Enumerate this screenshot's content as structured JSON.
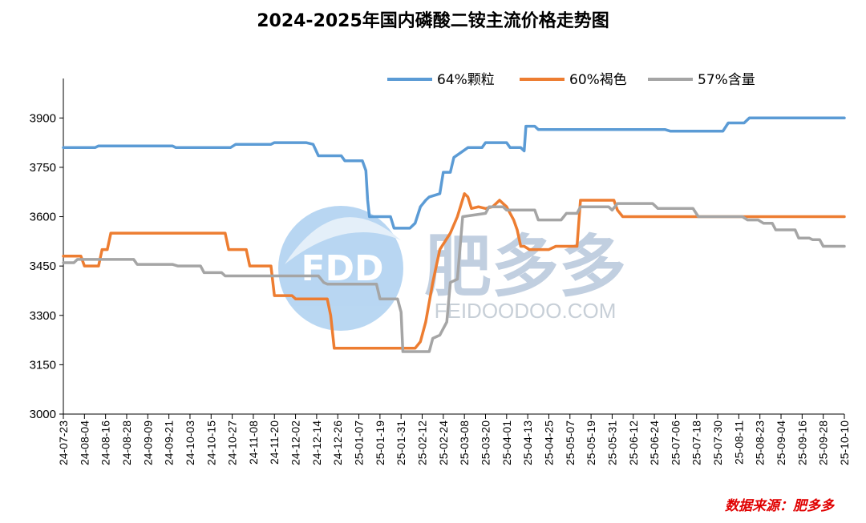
{
  "chart_data": {
    "type": "line",
    "title": "2024-2025年国内磷酸二铵主流价格走势图",
    "source": "数据来源：肥多多",
    "watermark": {
      "logo_text": "FDD",
      "brand": "肥多多",
      "domain": "FEIDOODOO.COM"
    },
    "yticks": [
      3000,
      3150,
      3300,
      3450,
      3600,
      3750,
      3900
    ],
    "ylim": [
      3000,
      4020
    ],
    "xlim": [
      0,
      444
    ],
    "xticks": [
      "24-07-23",
      "24-08-04",
      "24-08-16",
      "24-08-28",
      "24-09-09",
      "24-09-21",
      "24-10-03",
      "24-10-15",
      "24-10-27",
      "24-11-08",
      "24-11-20",
      "24-12-02",
      "24-12-14",
      "24-12-26",
      "25-01-07",
      "25-01-19",
      "25-01-31",
      "25-02-12",
      "25-02-24",
      "25-03-08",
      "25-03-20",
      "25-04-01",
      "25-04-13",
      "25-04-25",
      "25-05-07",
      "25-05-19",
      "25-05-31",
      "25-06-12",
      "25-06-24",
      "25-07-06",
      "25-07-18",
      "25-07-30",
      "25-08-11",
      "25-08-23",
      "25-09-04",
      "25-09-16",
      "25-09-28",
      "25-10-10"
    ],
    "legend_position": "top-right",
    "series": [
      {
        "name": "64%颗粒",
        "color": "#5b9bd5",
        "points": [
          [
            0,
            3810
          ],
          [
            18,
            3810
          ],
          [
            20,
            3815
          ],
          [
            62,
            3815
          ],
          [
            64,
            3810
          ],
          [
            95,
            3810
          ],
          [
            98,
            3820
          ],
          [
            118,
            3820
          ],
          [
            120,
            3825
          ],
          [
            138,
            3825
          ],
          [
            142,
            3820
          ],
          [
            145,
            3785
          ],
          [
            158,
            3785
          ],
          [
            160,
            3770
          ],
          [
            168,
            3770
          ],
          [
            170,
            3770
          ],
          [
            172,
            3740
          ],
          [
            173,
            3650
          ],
          [
            174,
            3600
          ],
          [
            186,
            3600
          ],
          [
            188,
            3565
          ],
          [
            197,
            3565
          ],
          [
            200,
            3580
          ],
          [
            203,
            3630
          ],
          [
            206,
            3650
          ],
          [
            208,
            3660
          ],
          [
            214,
            3670
          ],
          [
            216,
            3735
          ],
          [
            220,
            3735
          ],
          [
            222,
            3780
          ],
          [
            226,
            3795
          ],
          [
            230,
            3810
          ],
          [
            238,
            3810
          ],
          [
            240,
            3825
          ],
          [
            252,
            3825
          ],
          [
            254,
            3810
          ],
          [
            260,
            3810
          ],
          [
            262,
            3800
          ],
          [
            263,
            3875
          ],
          [
            268,
            3875
          ],
          [
            270,
            3865
          ],
          [
            342,
            3865
          ],
          [
            345,
            3860
          ],
          [
            375,
            3860
          ],
          [
            378,
            3885
          ],
          [
            387,
            3885
          ],
          [
            390,
            3900
          ],
          [
            444,
            3900
          ]
        ]
      },
      {
        "name": "60%褐色",
        "color": "#ed7d31",
        "points": [
          [
            0,
            3480
          ],
          [
            10,
            3480
          ],
          [
            12,
            3450
          ],
          [
            20,
            3450
          ],
          [
            22,
            3500
          ],
          [
            25,
            3500
          ],
          [
            27,
            3550
          ],
          [
            92,
            3550
          ],
          [
            94,
            3500
          ],
          [
            104,
            3500
          ],
          [
            106,
            3450
          ],
          [
            118,
            3450
          ],
          [
            120,
            3360
          ],
          [
            122,
            3360
          ],
          [
            124,
            3360
          ],
          [
            130,
            3360
          ],
          [
            132,
            3350
          ],
          [
            150,
            3350
          ],
          [
            152,
            3300
          ],
          [
            153,
            3250
          ],
          [
            154,
            3200
          ],
          [
            186,
            3200
          ],
          [
            200,
            3200
          ],
          [
            203,
            3220
          ],
          [
            206,
            3280
          ],
          [
            210,
            3400
          ],
          [
            214,
            3500
          ],
          [
            220,
            3550
          ],
          [
            224,
            3600
          ],
          [
            228,
            3670
          ],
          [
            230,
            3660
          ],
          [
            232,
            3625
          ],
          [
            236,
            3630
          ],
          [
            240,
            3625
          ],
          [
            244,
            3630
          ],
          [
            248,
            3650
          ],
          [
            252,
            3630
          ],
          [
            256,
            3590
          ],
          [
            258,
            3560
          ],
          [
            260,
            3510
          ],
          [
            262,
            3510
          ],
          [
            265,
            3500
          ],
          [
            276,
            3500
          ],
          [
            280,
            3510
          ],
          [
            292,
            3510
          ],
          [
            294,
            3650
          ],
          [
            313,
            3650
          ],
          [
            315,
            3620
          ],
          [
            318,
            3600
          ],
          [
            444,
            3600
          ]
        ]
      },
      {
        "name": "57%含量",
        "color": "#a5a5a5",
        "points": [
          [
            0,
            3460
          ],
          [
            6,
            3460
          ],
          [
            8,
            3470
          ],
          [
            38,
            3470
          ],
          [
            40,
            3470
          ],
          [
            42,
            3455
          ],
          [
            62,
            3455
          ],
          [
            65,
            3450
          ],
          [
            78,
            3450
          ],
          [
            80,
            3430
          ],
          [
            90,
            3430
          ],
          [
            92,
            3420
          ],
          [
            145,
            3420
          ],
          [
            148,
            3400
          ],
          [
            150,
            3395
          ],
          [
            178,
            3395
          ],
          [
            180,
            3350
          ],
          [
            190,
            3350
          ],
          [
            192,
            3310
          ],
          [
            193,
            3190
          ],
          [
            208,
            3190
          ],
          [
            210,
            3230
          ],
          [
            214,
            3240
          ],
          [
            218,
            3280
          ],
          [
            220,
            3400
          ],
          [
            224,
            3410
          ],
          [
            227,
            3600
          ],
          [
            240,
            3610
          ],
          [
            242,
            3630
          ],
          [
            250,
            3630
          ],
          [
            252,
            3620
          ],
          [
            262,
            3620
          ],
          [
            268,
            3620
          ],
          [
            270,
            3590
          ],
          [
            283,
            3590
          ],
          [
            286,
            3610
          ],
          [
            292,
            3610
          ],
          [
            294,
            3630
          ],
          [
            310,
            3630
          ],
          [
            312,
            3620
          ],
          [
            315,
            3640
          ],
          [
            335,
            3640
          ],
          [
            338,
            3625
          ],
          [
            358,
            3625
          ],
          [
            361,
            3600
          ],
          [
            386,
            3600
          ],
          [
            389,
            3590
          ],
          [
            395,
            3590
          ],
          [
            398,
            3580
          ],
          [
            403,
            3580
          ],
          [
            405,
            3560
          ],
          [
            416,
            3560
          ],
          [
            418,
            3535
          ],
          [
            424,
            3535
          ],
          [
            426,
            3530
          ],
          [
            430,
            3530
          ],
          [
            432,
            3510
          ],
          [
            444,
            3510
          ]
        ]
      }
    ]
  }
}
